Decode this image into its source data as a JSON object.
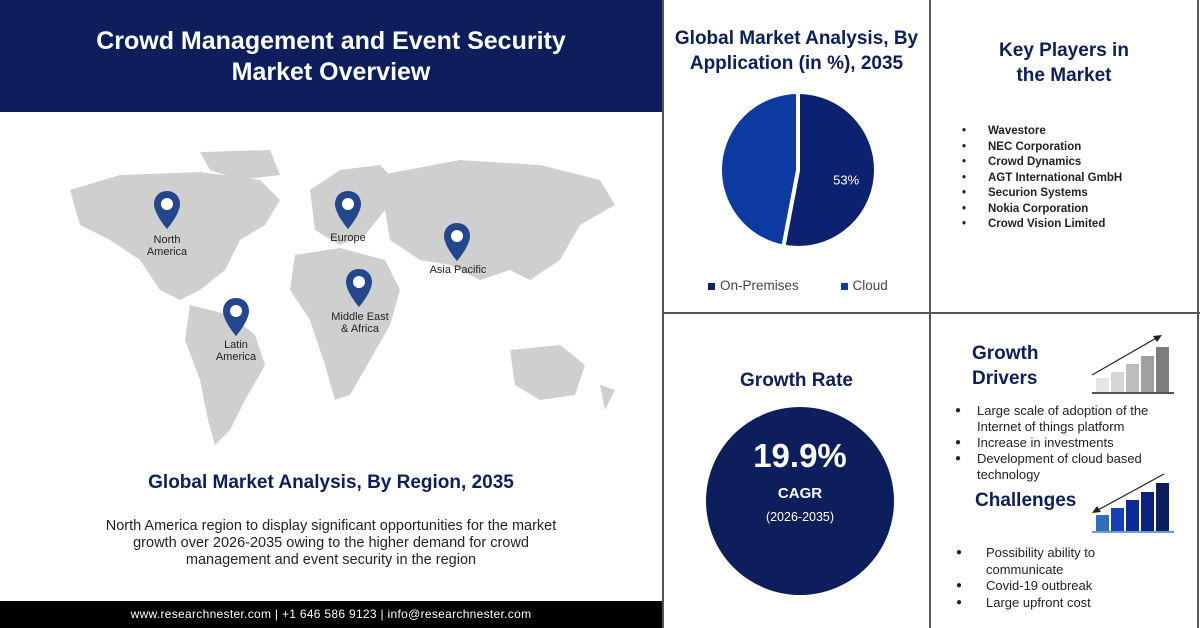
{
  "header": {
    "title_line1": "Crowd Management and Event Security",
    "title_line2": "Market Overview"
  },
  "map": {
    "regions": [
      "North America",
      "Europe",
      "Asia Pacific",
      "Middle East & Africa",
      "Latin America"
    ],
    "labels": {
      "na1": "North",
      "na2": "America",
      "eu": "Europe",
      "ap": "Asia Pacific",
      "mea1": "Middle East",
      "mea2": "& Africa",
      "la1": "Latin",
      "la2": "America"
    },
    "pin_color": "#23468c"
  },
  "region_section": {
    "title": "Global Market Analysis, By Region, 2035",
    "text": "North America region to display significant opportunities for the market growth over 2026-2035 owing to the higher demand for crowd management and event security in the region"
  },
  "footer": {
    "text": "www.researchnester.com | +1 646 586 9123 | info@researchnester.com"
  },
  "chart_data": {
    "type": "pie",
    "title": "Global Market Analysis, By Application (in %), 2035",
    "slices": [
      {
        "name": "On-Premises",
        "value": 53,
        "label": "53%",
        "color": "#0c2270"
      },
      {
        "name": "Cloud",
        "value": 47,
        "color": "#0b3aa0"
      }
    ],
    "legend_position": "bottom"
  },
  "key_players": {
    "title_line1": "Key Players in",
    "title_line2": "the Market",
    "items": [
      "Wavestore",
      "NEC Corporation",
      "Crowd Dynamics",
      "AGT International GmbH",
      "Securion Systems",
      "Nokia Corporation",
      "Crowd Vision Limited"
    ]
  },
  "growth_rate": {
    "title": "Growth Rate",
    "value": "19.9%",
    "label": "CAGR",
    "period": "(2026-2035)",
    "circle_color": "#0c1f5c"
  },
  "drivers": {
    "title_line1": "Growth",
    "title_line2": "Drivers",
    "items": [
      "Large scale of adoption of the Internet of things platform",
      "Increase in investments",
      "Development of cloud based technology"
    ]
  },
  "challenges": {
    "title": "Challenges",
    "items": [
      "Possibility ability to communicate",
      "Covid-19 outbreak",
      "Large upfront cost"
    ]
  }
}
